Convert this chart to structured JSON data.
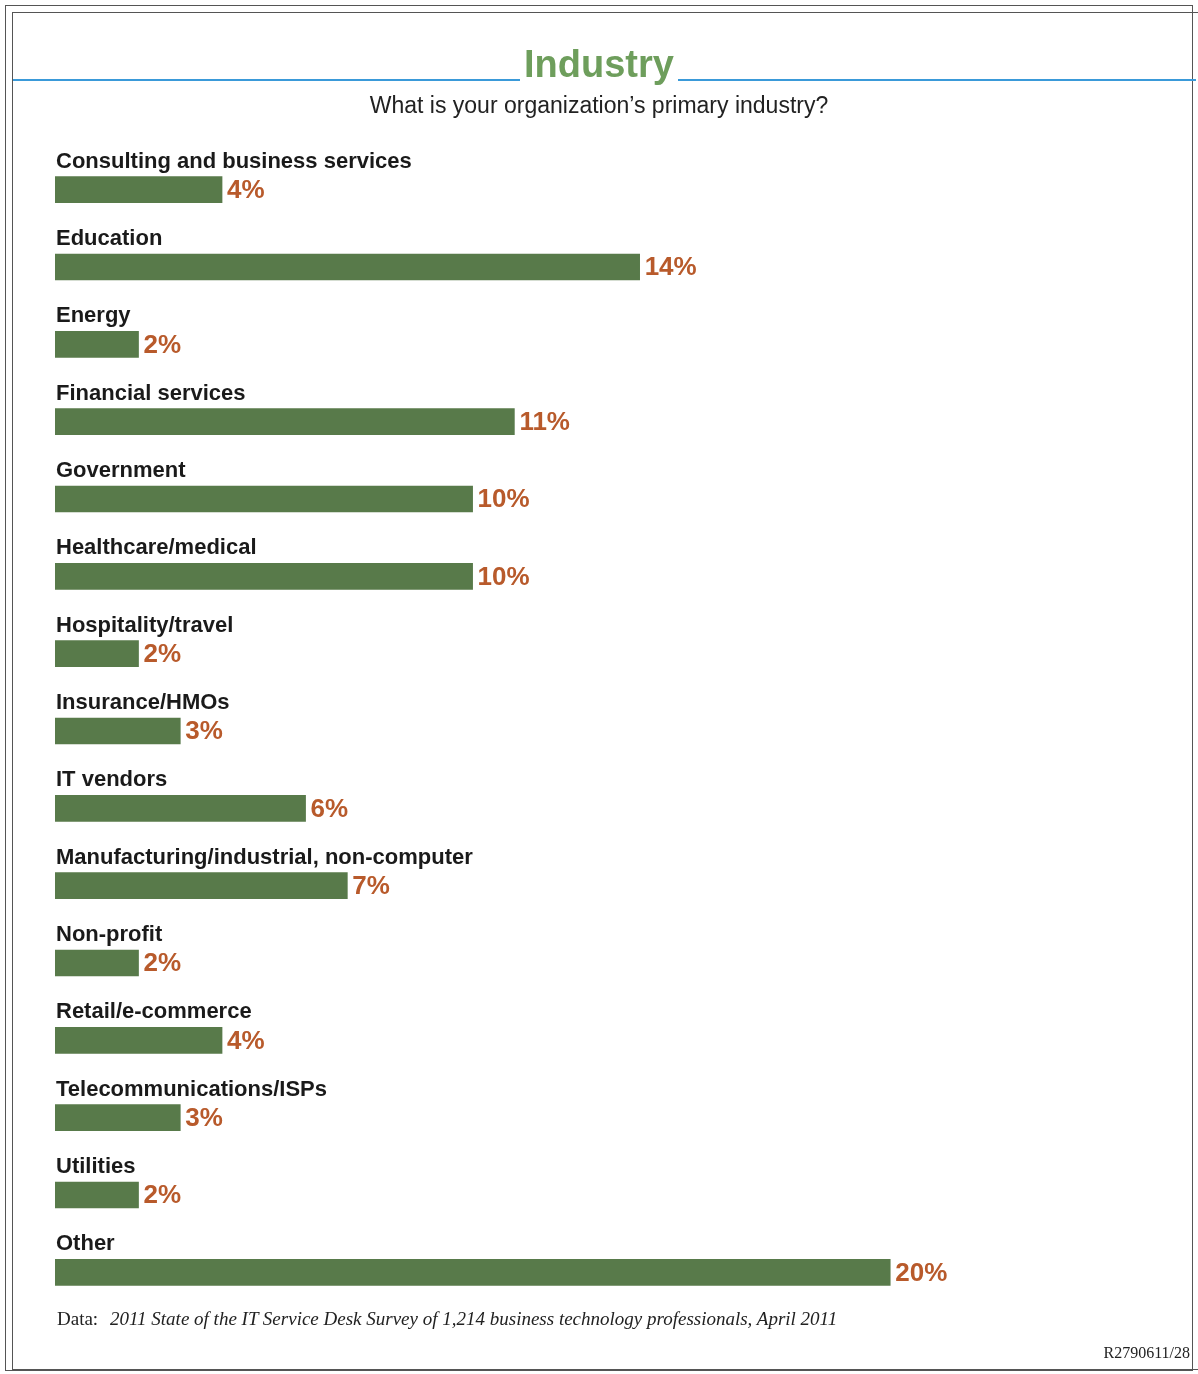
{
  "chart_data": {
    "type": "bar",
    "orientation": "horizontal",
    "title": "Industry",
    "subtitle": "What is your organization’s primary industry?",
    "categories": [
      "Consulting and business services",
      "Education",
      "Energy",
      "Financial services",
      "Government",
      "Healthcare/medical",
      "Hospitality/travel",
      "Insurance/HMOs",
      "IT vendors",
      "Manufacturing/industrial, non-computer",
      "Non-profit",
      "Retail/e-commerce",
      "Telecommunications/ISPs",
      "Utilities",
      "Other"
    ],
    "values": [
      4,
      14,
      2,
      11,
      10,
      10,
      2,
      3,
      6,
      7,
      2,
      4,
      3,
      2,
      20
    ],
    "value_labels": [
      "4%",
      "14%",
      "2%",
      "11%",
      "10%",
      "10%",
      "2%",
      "3%",
      "6%",
      "7%",
      "2%",
      "4%",
      "3%",
      "2%",
      "20%"
    ],
    "color": "#587a4a",
    "tick_labels": false,
    "annotations": [
      "Data:",
      "2011 State of the IT Service Desk Survey of 1,214 business technology professionals, April 2011",
      "R2790611/28"
    ]
  }
}
